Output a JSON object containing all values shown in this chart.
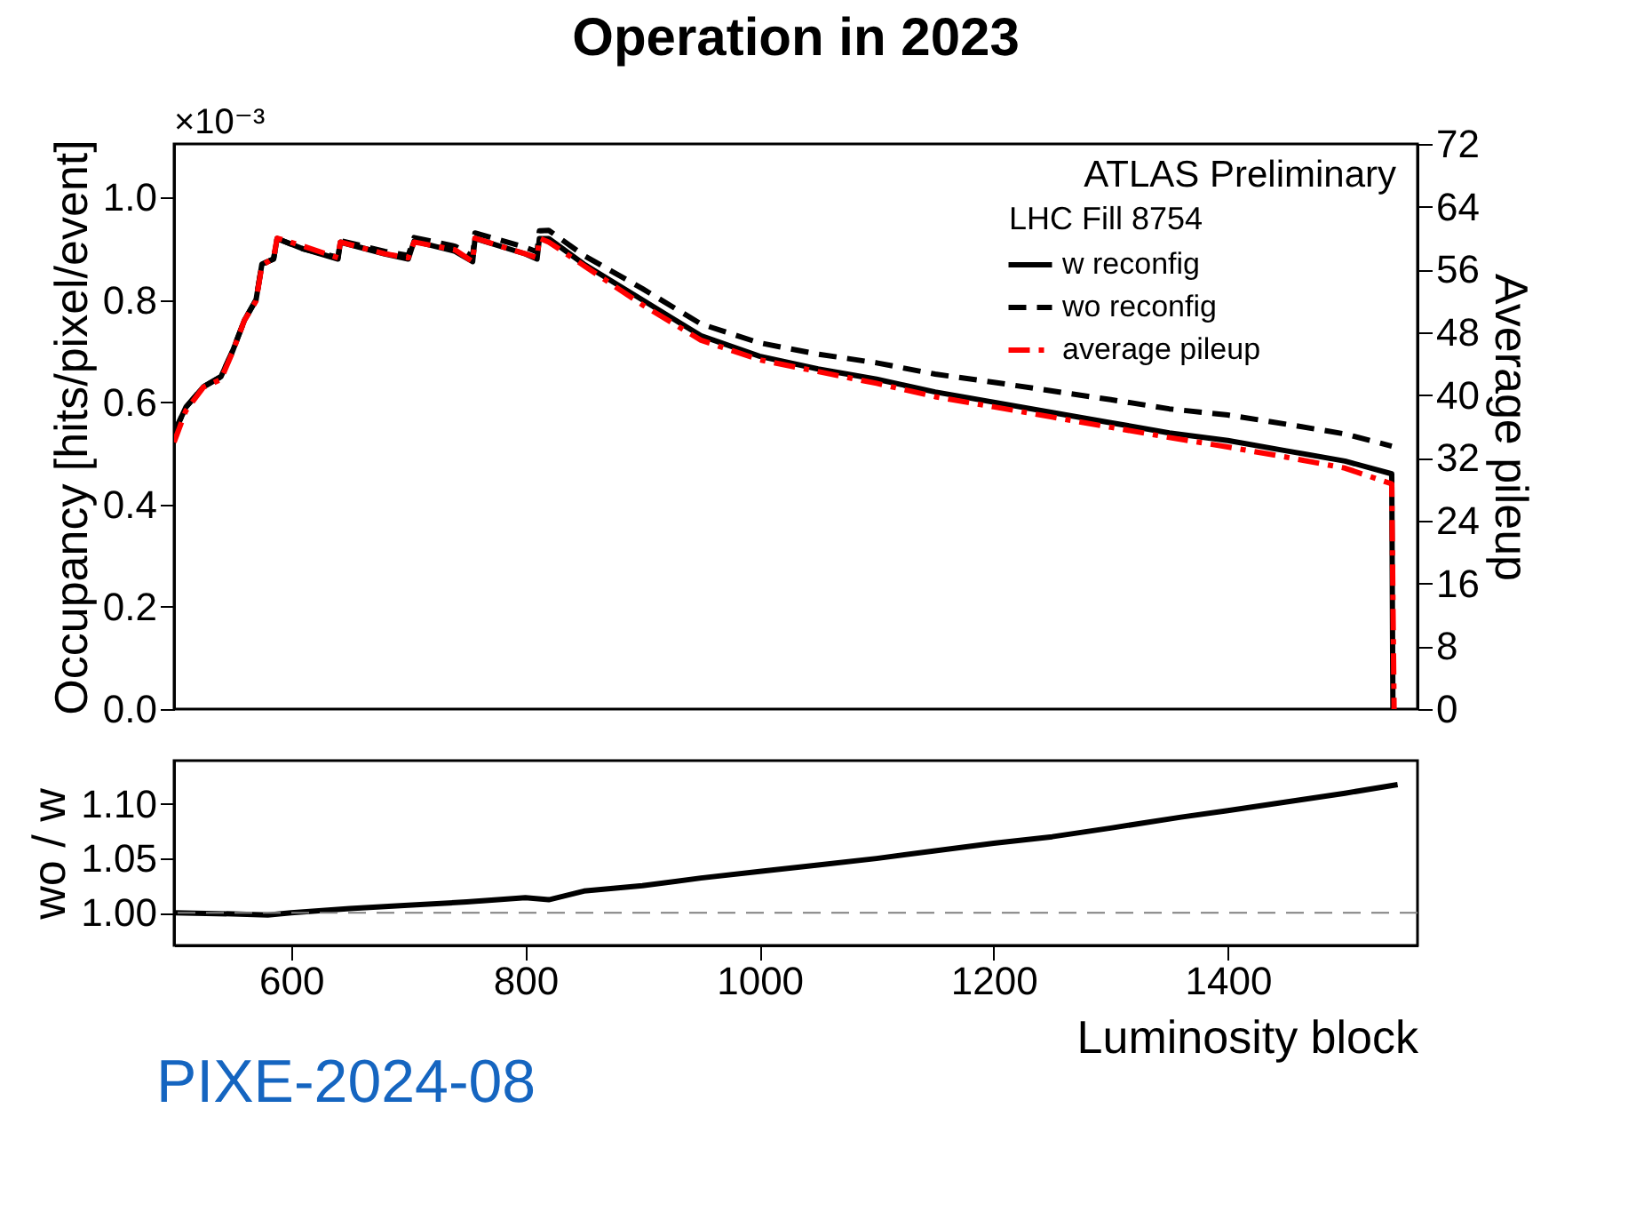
{
  "chart_data": [
    {
      "type": "line",
      "title": "Operation in 2023",
      "ylabel": "Occupancy [hits/pixel/event]",
      "y2label": "Average pileup",
      "annotations": [
        "×10⁻³",
        "ATLAS Preliminary",
        "LHC Fill 8754"
      ],
      "xlim": [
        500,
        1562
      ],
      "xticks": [
        600,
        800,
        1000,
        1200,
        1400
      ],
      "ylim": [
        0,
        1.105
      ],
      "yticks": [
        {
          "value": 0,
          "label": "0.0"
        },
        {
          "value": 0.2,
          "label": "0.2"
        },
        {
          "value": 0.4,
          "label": "0.4"
        },
        {
          "value": 0.6,
          "label": "0.6"
        },
        {
          "value": 0.8,
          "label": "0.8"
        },
        {
          "value": 1,
          "label": "1.0"
        }
      ],
      "y2lim": [
        0,
        72
      ],
      "y2ticks": [
        0,
        8,
        16,
        24,
        32,
        40,
        48,
        56,
        64,
        72
      ],
      "tick_labels": "y",
      "legend": "top right",
      "series": [
        {
          "name": "w reconfig",
          "color": "#000000",
          "line_style": "solid",
          "x": [
            500,
            510,
            525,
            540,
            550,
            560,
            570,
            575,
            585,
            588,
            610,
            640,
            642,
            680,
            700,
            705,
            740,
            755,
            757,
            800,
            810,
            812,
            820,
            850,
            900,
            950,
            1000,
            1050,
            1100,
            1150,
            1200,
            1250,
            1300,
            1350,
            1400,
            1450,
            1500,
            1540,
            1541
          ],
          "values": [
            0.54,
            0.59,
            0.63,
            0.65,
            0.7,
            0.76,
            0.8,
            0.87,
            0.88,
            0.92,
            0.9,
            0.88,
            0.913,
            0.89,
            0.88,
            0.915,
            0.895,
            0.875,
            0.92,
            0.89,
            0.88,
            0.92,
            0.92,
            0.87,
            0.8,
            0.73,
            0.69,
            0.665,
            0.645,
            0.62,
            0.6,
            0.58,
            0.56,
            0.54,
            0.525,
            0.505,
            0.485,
            0.46,
            0
          ]
        },
        {
          "name": "wo reconfig",
          "color": "#000000",
          "line_style": "dashed",
          "x": [
            500,
            510,
            525,
            540,
            550,
            560,
            570,
            575,
            585,
            588,
            610,
            640,
            642,
            680,
            700,
            705,
            740,
            755,
            757,
            800,
            810,
            812,
            820,
            850,
            900,
            950,
            1000,
            1050,
            1100,
            1150,
            1200,
            1250,
            1300,
            1350,
            1400,
            1450,
            1500,
            1540
          ],
          "values": [
            0.54,
            0.59,
            0.63,
            0.65,
            0.7,
            0.76,
            0.8,
            0.87,
            0.88,
            0.92,
            0.9,
            0.883,
            0.916,
            0.895,
            0.887,
            0.922,
            0.905,
            0.885,
            0.931,
            0.903,
            0.894,
            0.935,
            0.936,
            0.887,
            0.822,
            0.753,
            0.716,
            0.694,
            0.677,
            0.655,
            0.639,
            0.622,
            0.605,
            0.587,
            0.575,
            0.557,
            0.538,
            0.514
          ]
        },
        {
          "name": "average pileup",
          "color": "#ff0000",
          "line_style": "dashdot",
          "axis": "y2",
          "x": [
            500,
            510,
            525,
            540,
            550,
            560,
            570,
            575,
            585,
            588,
            610,
            640,
            642,
            680,
            700,
            705,
            740,
            755,
            757,
            800,
            810,
            812,
            820,
            850,
            900,
            950,
            1000,
            1050,
            1100,
            1150,
            1200,
            1250,
            1300,
            1350,
            1400,
            1450,
            1500,
            1540,
            1541,
            1542
          ],
          "values": [
            34,
            38,
            41,
            42,
            45.5,
            49.5,
            52,
            56.5,
            57.5,
            60,
            59,
            57.5,
            59.5,
            58,
            57.5,
            59.5,
            58.5,
            57,
            60,
            58,
            57.5,
            60,
            59.5,
            56.5,
            51.5,
            47,
            44.5,
            43,
            41.5,
            39.8,
            38.5,
            37.2,
            35.9,
            34.6,
            33.4,
            32.1,
            30.7,
            28.7,
            14,
            0
          ]
        }
      ]
    },
    {
      "type": "line",
      "xlabel": "Luminosity block",
      "ylabel": "wo / w",
      "annotations": [
        "PIXE-2024-08"
      ],
      "xlim": [
        500,
        1562
      ],
      "xticks": [
        600,
        800,
        1000,
        1200,
        1400
      ],
      "ylim": [
        0.97,
        1.14
      ],
      "yticks": [
        {
          "value": 1,
          "label": "1.00"
        },
        {
          "value": 1.05,
          "label": "1.05"
        },
        {
          "value": 1.1,
          "label": "1.10"
        }
      ],
      "ref_lines": [
        {
          "axis": "y",
          "value": 1,
          "color": "#808080",
          "line_style": "dashed"
        }
      ],
      "series": [
        {
          "color": "#000000",
          "x": [
            500,
            550,
            580,
            600,
            650,
            700,
            750,
            800,
            820,
            850,
            900,
            950,
            1000,
            1050,
            1100,
            1150,
            1200,
            1250,
            1300,
            1360,
            1400,
            1450,
            1500,
            1545
          ],
          "values": [
            1.0,
            0.999,
            0.998,
            1.0,
            1.004,
            1.007,
            1.01,
            1.014,
            1.012,
            1.02,
            1.025,
            1.032,
            1.038,
            1.044,
            1.05,
            1.057,
            1.064,
            1.07,
            1.078,
            1.088,
            1.094,
            1.102,
            1.11,
            1.118
          ]
        }
      ]
    }
  ]
}
